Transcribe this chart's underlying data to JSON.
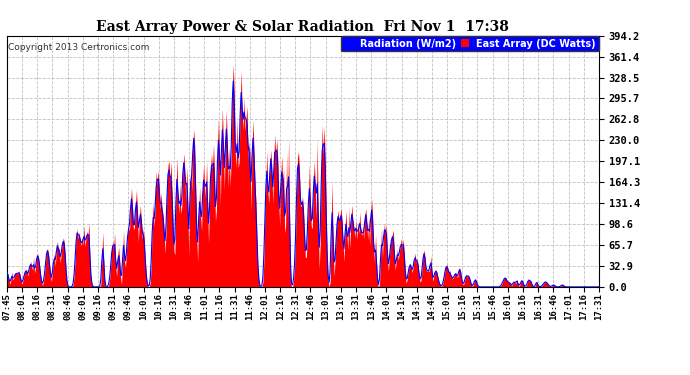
{
  "title": "East Array Power & Solar Radiation  Fri Nov 1  17:38",
  "copyright": "Copyright 2013 Certronics.com",
  "legend_blue": "Radiation (W/m2)",
  "legend_red": "East Array (DC Watts)",
  "yticks": [
    0.0,
    32.9,
    65.7,
    98.6,
    131.4,
    164.3,
    197.1,
    230.0,
    262.8,
    295.7,
    328.5,
    361.4,
    394.2
  ],
  "ymax": 394.2,
  "ymin": 0.0,
  "bg_color": "#ffffff",
  "plot_bg_color": "#ffffff",
  "grid_color": "#bbbbbb",
  "red_fill_color": "#ff0000",
  "blue_line_color": "#0000ff",
  "xtick_labels": [
    "07:45",
    "08:01",
    "08:16",
    "08:31",
    "08:46",
    "09:01",
    "09:16",
    "09:31",
    "09:46",
    "10:01",
    "10:16",
    "10:31",
    "10:46",
    "11:01",
    "11:16",
    "11:31",
    "11:46",
    "12:01",
    "12:16",
    "12:31",
    "12:46",
    "13:01",
    "13:16",
    "13:31",
    "13:46",
    "14:01",
    "14:16",
    "14:31",
    "14:46",
    "15:01",
    "15:16",
    "15:31",
    "15:46",
    "16:01",
    "16:16",
    "16:31",
    "16:46",
    "17:01",
    "17:16",
    "17:31"
  ]
}
